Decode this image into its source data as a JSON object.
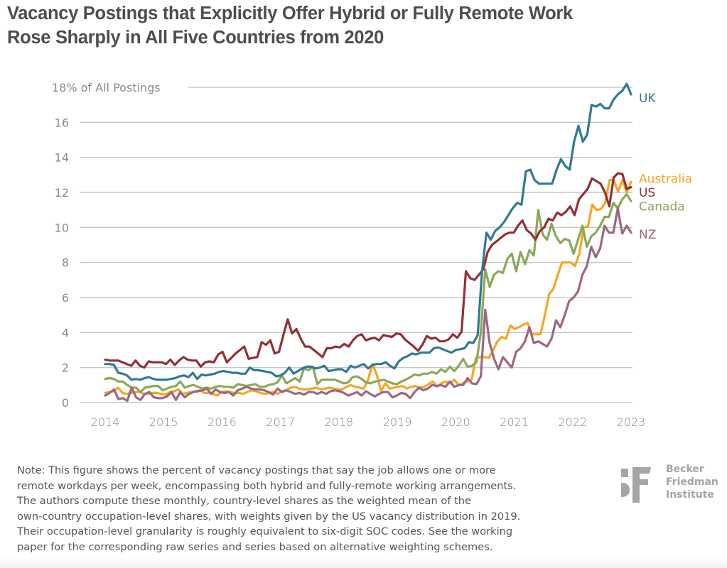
{
  "title_lines": [
    "Vacancy Postings that Explicitly Offer Hybrid or Fully Remote Work",
    "Rose Sharply in All Five Countries from 2020"
  ],
  "note_lines": [
    "Note: This figure shows the percent of vacancy postings that say the job allows one or more",
    "remote workdays per week, encompassing both hybrid and fully-remote working arrangements.",
    "The authors compute these monthly, country-level shares as the weighted mean of the",
    "own-country occupation-level shares, with weights given by the US vacancy distribution in 2019.",
    "Their occupation-level granularity is roughly equivalent to six-digit SOC codes. See the working",
    "paper for the corresponding raw series and series based on alternative weighting schemes."
  ],
  "logo": {
    "mark": "BF",
    "lines": [
      "Becker",
      "Friedman",
      "Institute"
    ]
  },
  "chart_data": {
    "type": "line",
    "title": "Vacancy Postings that Explicitly Offer Hybrid or Fully Remote Work Rose Sharply in All Five Countries from 2020",
    "xlabel": "",
    "ylabel": "% of All Postings",
    "xlim": [
      2014,
      2023
    ],
    "ylim": [
      0,
      18
    ],
    "grid": true,
    "legend": "direct-labels-right",
    "x_ticks": [
      "2014",
      "2015",
      "2016",
      "2017",
      "2018",
      "2019",
      "2020",
      "2021",
      "2022",
      "2023"
    ],
    "y_ticks": [
      {
        "value": 0,
        "label": "0"
      },
      {
        "value": 2,
        "label": "2"
      },
      {
        "value": 4,
        "label": "4"
      },
      {
        "value": 6,
        "label": "6"
      },
      {
        "value": 8,
        "label": "8"
      },
      {
        "value": 10,
        "label": "10"
      },
      {
        "value": 12,
        "label": "12"
      },
      {
        "value": 14,
        "label": "14"
      },
      {
        "value": 16,
        "label": "16"
      },
      {
        "value": 18,
        "label": "18% of All Postings"
      }
    ],
    "x_start": 2014.0,
    "x_step_months": 1,
    "series": [
      {
        "name": "UK",
        "color": "#327a92",
        "values": [
          2.2,
          2.2,
          2.15,
          1.7,
          1.65,
          1.55,
          1.3,
          1.35,
          1.3,
          1.4,
          1.45,
          1.35,
          1.3,
          1.3,
          1.3,
          1.35,
          1.4,
          1.5,
          1.55,
          1.45,
          1.7,
          1.35,
          1.6,
          1.55,
          1.6,
          1.65,
          1.75,
          1.8,
          1.75,
          1.7,
          1.7,
          1.65,
          1.65,
          2.0,
          1.85,
          1.85,
          1.8,
          1.75,
          1.7,
          1.5,
          1.55,
          1.7,
          2.0,
          1.65,
          1.8,
          1.95,
          2.05,
          2.05,
          1.95,
          2.0,
          2.1,
          1.8,
          1.85,
          1.9,
          1.9,
          1.75,
          2.1,
          2.0,
          2.1,
          2.2,
          1.95,
          2.15,
          2.2,
          2.2,
          2.3,
          2.1,
          1.95,
          2.35,
          2.55,
          2.65,
          2.8,
          2.75,
          2.85,
          2.85,
          2.85,
          3.1,
          3.15,
          3.05,
          2.95,
          2.85,
          3.0,
          3.05,
          3.1,
          3.45,
          3.4,
          3.85,
          7.5,
          9.7,
          9.3,
          9.8,
          10.0,
          10.3,
          10.7,
          11.1,
          11.4,
          11.3,
          13.2,
          13.3,
          12.7,
          12.5,
          12.5,
          12.5,
          12.5,
          13.3,
          13.9,
          13.5,
          13.3,
          14.9,
          15.8,
          14.9,
          15.3,
          17.0,
          16.9,
          17.05,
          16.8,
          16.8,
          17.3,
          17.6,
          17.8,
          18.2,
          17.6
        ]
      },
      {
        "name": "US",
        "color": "#943034",
        "values": [
          2.45,
          2.4,
          2.4,
          2.4,
          2.3,
          2.2,
          2.1,
          2.4,
          2.1,
          2.0,
          2.35,
          2.3,
          2.3,
          2.3,
          2.2,
          2.45,
          2.15,
          2.4,
          2.6,
          2.45,
          2.4,
          2.4,
          2.05,
          2.3,
          2.35,
          2.3,
          2.75,
          2.9,
          2.3,
          2.55,
          2.8,
          3.0,
          3.2,
          2.5,
          2.55,
          2.6,
          3.45,
          3.3,
          3.55,
          2.8,
          2.9,
          3.85,
          4.75,
          3.95,
          4.2,
          3.65,
          3.2,
          3.2,
          3.0,
          2.8,
          2.6,
          3.1,
          3.1,
          3.2,
          3.15,
          3.35,
          3.2,
          3.55,
          3.8,
          3.9,
          3.55,
          3.65,
          3.7,
          3.55,
          3.85,
          3.8,
          3.75,
          3.95,
          3.9,
          3.6,
          3.4,
          3.2,
          2.95,
          3.3,
          3.8,
          3.65,
          3.7,
          3.5,
          3.5,
          3.6,
          3.9,
          3.7,
          4.05,
          7.5,
          7.1,
          7.0,
          7.3,
          7.6,
          8.6,
          9.0,
          9.2,
          9.4,
          9.6,
          9.7,
          9.7,
          10.1,
          10.4,
          9.85,
          9.65,
          9.3,
          9.8,
          10.0,
          10.5,
          10.4,
          10.85,
          10.7,
          10.9,
          11.2,
          10.7,
          11.6,
          11.9,
          12.2,
          12.8,
          12.65,
          12.5,
          12.0,
          11.2,
          12.85,
          13.1,
          13.05,
          12.2,
          12.3
        ]
      },
      {
        "name": "Australia",
        "color": "#f6a623",
        "values": [
          0.55,
          0.6,
          0.65,
          0.85,
          0.55,
          0.5,
          0.55,
          0.6,
          0.6,
          0.5,
          0.5,
          0.55,
          0.55,
          0.5,
          0.45,
          0.6,
          0.65,
          0.75,
          0.5,
          0.55,
          0.6,
          0.65,
          0.7,
          0.55,
          0.55,
          0.5,
          0.4,
          0.6,
          0.65,
          0.6,
          0.55,
          0.55,
          0.5,
          0.6,
          0.7,
          0.65,
          0.55,
          0.5,
          0.55,
          0.6,
          0.5,
          0.65,
          0.7,
          0.85,
          0.9,
          0.8,
          0.75,
          0.75,
          0.8,
          0.85,
          0.75,
          0.8,
          0.85,
          0.8,
          0.75,
          0.75,
          0.9,
          1.0,
          0.9,
          0.85,
          0.8,
          1.3,
          2.2,
          1.6,
          0.65,
          1.1,
          0.8,
          0.85,
          0.9,
          0.95,
          0.8,
          0.9,
          0.95,
          0.85,
          0.9,
          1.05,
          1.2,
          0.9,
          1.1,
          1.2,
          1.1,
          1.3,
          1.0,
          1.1,
          1.2,
          1.3,
          2.55,
          2.6,
          2.6,
          2.55,
          3.0,
          3.5,
          3.75,
          3.65,
          4.4,
          4.2,
          4.3,
          4.45,
          4.55,
          3.9,
          3.9,
          3.9,
          5.0,
          6.2,
          6.5,
          7.3,
          8.0,
          8.0,
          8.0,
          7.8,
          8.5,
          10.0,
          10.05,
          11.3,
          11.0,
          11.05,
          11.4,
          12.7,
          12.7,
          12.05,
          12.7,
          12.0,
          12.6
        ]
      },
      {
        "name": "Canada",
        "color": "#8aa95a",
        "values": [
          1.35,
          1.4,
          1.35,
          1.2,
          1.2,
          1.0,
          0.85,
          0.85,
          0.6,
          0.85,
          0.9,
          0.95,
          0.95,
          0.7,
          0.8,
          0.9,
          0.95,
          1.2,
          0.85,
          0.95,
          1.0,
          0.9,
          0.8,
          0.85,
          0.8,
          0.9,
          0.95,
          0.9,
          0.9,
          0.85,
          1.05,
          1.0,
          0.95,
          1.0,
          1.05,
          0.9,
          0.9,
          1.0,
          1.05,
          1.15,
          1.55,
          1.1,
          1.25,
          1.4,
          1.2,
          1.95,
          1.85,
          2.05,
          1.05,
          1.3,
          1.3,
          1.3,
          1.3,
          1.2,
          1.1,
          1.15,
          1.45,
          1.5,
          1.35,
          1.15,
          1.1,
          1.2,
          1.25,
          1.3,
          1.2,
          1.1,
          1.05,
          1.2,
          1.3,
          1.45,
          1.6,
          1.55,
          1.65,
          1.65,
          1.75,
          1.65,
          1.9,
          1.75,
          2.05,
          1.8,
          2.1,
          2.5,
          2.05,
          2.1,
          2.3,
          4.0,
          7.6,
          6.6,
          7.3,
          7.5,
          7.4,
          8.2,
          8.5,
          7.5,
          8.6,
          7.9,
          8.7,
          8.4,
          11.0,
          9.6,
          9.3,
          10.2,
          9.5,
          9.1,
          9.35,
          9.25,
          8.5,
          9.3,
          10.1,
          8.9,
          9.5,
          9.7,
          10.1,
          10.6,
          10.6,
          11.4,
          11.1,
          11.6,
          11.9,
          11.5
        ]
      },
      {
        "name": "NZ",
        "color": "#9c6882",
        "values": [
          0.4,
          0.55,
          0.75,
          0.2,
          0.25,
          0.1,
          0.85,
          0.3,
          0.15,
          0.5,
          0.6,
          0.3,
          0.25,
          0.25,
          0.35,
          0.6,
          0.15,
          0.6,
          0.3,
          0.5,
          0.6,
          0.65,
          0.7,
          0.8,
          0.5,
          0.75,
          0.6,
          0.55,
          0.6,
          0.4,
          0.7,
          0.8,
          0.9,
          0.8,
          0.75,
          0.75,
          0.7,
          0.6,
          0.45,
          0.8,
          0.6,
          0.7,
          0.6,
          0.5,
          0.55,
          0.45,
          0.6,
          0.6,
          0.5,
          0.6,
          0.5,
          0.65,
          0.7,
          0.65,
          0.55,
          0.4,
          0.5,
          0.6,
          0.4,
          0.65,
          0.5,
          0.35,
          0.5,
          0.6,
          0.6,
          0.3,
          0.4,
          0.55,
          0.5,
          0.25,
          0.6,
          0.85,
          0.7,
          0.8,
          1.0,
          0.95,
          1.0,
          0.9,
          1.2,
          0.9,
          1.0,
          1.0,
          1.4,
          1.1,
          1.05,
          1.5,
          5.3,
          3.4,
          2.5,
          1.9,
          2.6,
          2.3,
          2.0,
          2.9,
          3.1,
          3.5,
          4.3,
          3.4,
          3.5,
          3.35,
          3.2,
          3.65,
          4.7,
          4.3,
          5.0,
          5.8,
          6.0,
          6.35,
          7.3,
          7.8,
          8.9,
          8.3,
          8.8,
          10.1,
          9.7,
          9.7,
          11.1,
          9.65,
          10.1,
          9.7
        ]
      }
    ]
  }
}
